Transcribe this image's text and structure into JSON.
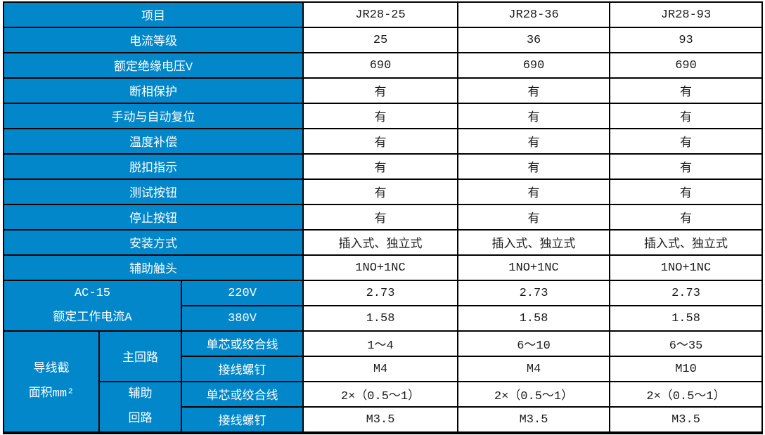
{
  "colors": {
    "accent_blue": "#0287CA",
    "border": "#000000",
    "label_text": "#FFFFFF",
    "value_text": "#1C1C1C",
    "background": "#FFFFFF"
  },
  "table": {
    "columns": [
      "项目",
      "JR28-25",
      "JR28-36",
      "JR28-93"
    ],
    "rows": [
      {
        "cells": [
          {
            "name": "item-header-cell",
            "kind": "label",
            "colspan": 3,
            "text": "项目"
          },
          {
            "name": "model-header-cell",
            "kind": "value",
            "text": "JR28-25"
          },
          {
            "name": "model-header-cell",
            "kind": "value",
            "text": "JR28-36"
          },
          {
            "name": "model-header-cell",
            "kind": "value",
            "text": "JR28-93"
          }
        ]
      },
      {
        "cells": [
          {
            "name": "row-label-cell",
            "kind": "label",
            "colspan": 3,
            "text": "电流等级"
          },
          {
            "name": "value-cell",
            "kind": "value",
            "text": "25"
          },
          {
            "name": "value-cell",
            "kind": "value",
            "text": "36"
          },
          {
            "name": "value-cell",
            "kind": "value",
            "text": "93"
          }
        ]
      },
      {
        "cells": [
          {
            "name": "row-label-cell",
            "kind": "label",
            "colspan": 3,
            "text": "额定绝缘电压V"
          },
          {
            "name": "value-cell",
            "kind": "value",
            "text": "690"
          },
          {
            "name": "value-cell",
            "kind": "value",
            "text": "690"
          },
          {
            "name": "value-cell",
            "kind": "value",
            "text": "690"
          }
        ]
      },
      {
        "cells": [
          {
            "name": "row-label-cell",
            "kind": "label",
            "colspan": 3,
            "text": "断相保护"
          },
          {
            "name": "value-cell",
            "kind": "value",
            "text": "有"
          },
          {
            "name": "value-cell",
            "kind": "value",
            "text": "有"
          },
          {
            "name": "value-cell",
            "kind": "value",
            "text": "有"
          }
        ]
      },
      {
        "cells": [
          {
            "name": "row-label-cell",
            "kind": "label",
            "colspan": 3,
            "text": "手动与自动复位"
          },
          {
            "name": "value-cell",
            "kind": "value",
            "text": "有"
          },
          {
            "name": "value-cell",
            "kind": "value",
            "text": "有"
          },
          {
            "name": "value-cell",
            "kind": "value",
            "text": "有"
          }
        ]
      },
      {
        "cells": [
          {
            "name": "row-label-cell",
            "kind": "label",
            "colspan": 3,
            "text": "温度补偿"
          },
          {
            "name": "value-cell",
            "kind": "value",
            "text": "有"
          },
          {
            "name": "value-cell",
            "kind": "value",
            "text": "有"
          },
          {
            "name": "value-cell",
            "kind": "value",
            "text": "有"
          }
        ]
      },
      {
        "cells": [
          {
            "name": "row-label-cell",
            "kind": "label",
            "colspan": 3,
            "text": "脱扣指示"
          },
          {
            "name": "value-cell",
            "kind": "value",
            "text": "有"
          },
          {
            "name": "value-cell",
            "kind": "value",
            "text": "有"
          },
          {
            "name": "value-cell",
            "kind": "value",
            "text": "有"
          }
        ]
      },
      {
        "cells": [
          {
            "name": "row-label-cell",
            "kind": "label",
            "colspan": 3,
            "text": "测试按钮"
          },
          {
            "name": "value-cell",
            "kind": "value",
            "text": "有"
          },
          {
            "name": "value-cell",
            "kind": "value",
            "text": "有"
          },
          {
            "name": "value-cell",
            "kind": "value",
            "text": "有"
          }
        ]
      },
      {
        "cells": [
          {
            "name": "row-label-cell",
            "kind": "label",
            "colspan": 3,
            "text": "停止按钮"
          },
          {
            "name": "value-cell",
            "kind": "value",
            "text": "有"
          },
          {
            "name": "value-cell",
            "kind": "value",
            "text": "有"
          },
          {
            "name": "value-cell",
            "kind": "value",
            "text": "有"
          }
        ]
      },
      {
        "cells": [
          {
            "name": "row-label-cell",
            "kind": "label",
            "colspan": 3,
            "text": "安装方式"
          },
          {
            "name": "value-cell",
            "kind": "value",
            "text": "插入式、独立式"
          },
          {
            "name": "value-cell",
            "kind": "value",
            "text": "插入式、独立式"
          },
          {
            "name": "value-cell",
            "kind": "value",
            "text": "插入式、独立式"
          }
        ]
      },
      {
        "cells": [
          {
            "name": "row-label-cell",
            "kind": "label",
            "colspan": 3,
            "text": "辅助触头"
          },
          {
            "name": "value-cell",
            "kind": "value",
            "text": "1NO+1NC"
          },
          {
            "name": "value-cell",
            "kind": "value",
            "text": "1NO+1NC"
          },
          {
            "name": "value-cell",
            "kind": "value",
            "text": "1NO+1NC"
          }
        ]
      },
      {
        "cells": [
          {
            "name": "group-label-cell",
            "kind": "label",
            "colspan": 2,
            "rowspan": 2,
            "multiline": true,
            "text": "AC-15\n额定工作电流A"
          },
          {
            "name": "sub-label-cell",
            "kind": "label",
            "text": "220V"
          },
          {
            "name": "value-cell",
            "kind": "value",
            "text": "2.73"
          },
          {
            "name": "value-cell",
            "kind": "value",
            "text": "2.73"
          },
          {
            "name": "value-cell",
            "kind": "value",
            "text": "2.73"
          }
        ]
      },
      {
        "cells": [
          {
            "name": "sub-label-cell",
            "kind": "label",
            "text": "380V"
          },
          {
            "name": "value-cell",
            "kind": "value",
            "text": "1.58"
          },
          {
            "name": "value-cell",
            "kind": "value",
            "text": "1.58"
          },
          {
            "name": "value-cell",
            "kind": "value",
            "text": "1.58"
          }
        ]
      },
      {
        "cells": [
          {
            "name": "group-label-cell",
            "kind": "label",
            "rowspan": 4,
            "multiline": true,
            "text": "导线截\n面积mm²"
          },
          {
            "name": "sub-label-cell",
            "kind": "label",
            "rowspan": 2,
            "text": "主回路"
          },
          {
            "name": "sub-label-cell",
            "kind": "label",
            "text": "单芯或绞合线"
          },
          {
            "name": "value-cell",
            "kind": "value",
            "text": "1～4"
          },
          {
            "name": "value-cell",
            "kind": "value",
            "text": "6～10"
          },
          {
            "name": "value-cell",
            "kind": "value",
            "text": "6～35"
          }
        ]
      },
      {
        "cells": [
          {
            "name": "sub-label-cell",
            "kind": "label",
            "text": "接线螺钉"
          },
          {
            "name": "value-cell",
            "kind": "value",
            "text": "M4"
          },
          {
            "name": "value-cell",
            "kind": "value",
            "text": "M4"
          },
          {
            "name": "value-cell",
            "kind": "value",
            "text": "M10"
          }
        ]
      },
      {
        "cells": [
          {
            "name": "sub-label-cell",
            "kind": "label",
            "rowspan": 2,
            "multiline": true,
            "text": "辅助\n回路"
          },
          {
            "name": "sub-label-cell",
            "kind": "label",
            "text": "单芯或绞合线"
          },
          {
            "name": "value-cell",
            "kind": "value",
            "text": "2×（0.5～1）"
          },
          {
            "name": "value-cell",
            "kind": "value",
            "text": "2×（0.5～1）"
          },
          {
            "name": "value-cell",
            "kind": "value",
            "text": "2×（0.5～1）"
          }
        ]
      },
      {
        "cells": [
          {
            "name": "sub-label-cell",
            "kind": "label",
            "text": "接线螺钉"
          },
          {
            "name": "value-cell",
            "kind": "value",
            "text": "M3.5"
          },
          {
            "name": "value-cell",
            "kind": "value",
            "text": "M3.5"
          },
          {
            "name": "value-cell",
            "kind": "value",
            "text": "M3.5"
          }
        ]
      }
    ]
  }
}
